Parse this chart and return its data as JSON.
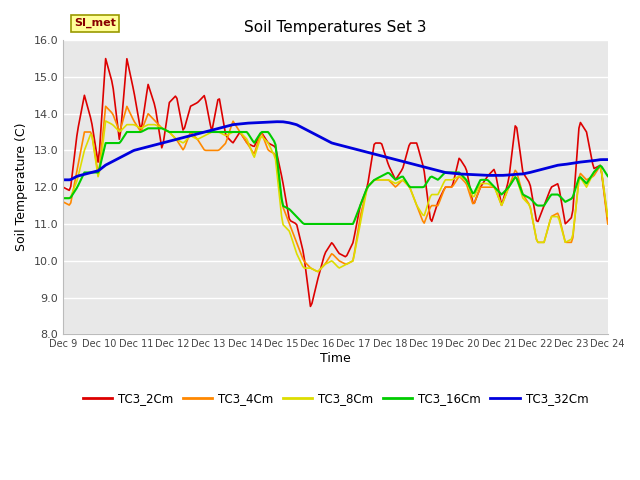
{
  "title": "Soil Temperatures Set 3",
  "xlabel": "Time",
  "ylabel": "Soil Temperature (C)",
  "ylim": [
    8.0,
    16.0
  ],
  "yticks": [
    8.0,
    9.0,
    10.0,
    11.0,
    12.0,
    13.0,
    14.0,
    15.0,
    16.0
  ],
  "xtick_labels": [
    "Dec 9",
    "Dec 10",
    "Dec 11",
    "Dec 12",
    "Dec 13",
    "Dec 14",
    "Dec 15",
    "Dec 16",
    "Dec 17",
    "Dec 18",
    "Dec 19",
    "Dec 20",
    "Dec 21",
    "Dec 22",
    "Dec 23",
    "Dec 24"
  ],
  "colors": {
    "TC3_2Cm": "#dd0000",
    "TC3_4Cm": "#ff8800",
    "TC3_8Cm": "#dddd00",
    "TC3_16Cm": "#00cc00",
    "TC3_32Cm": "#0000dd"
  },
  "bg_color": "#e8e8e8",
  "legend_label": "SI_met",
  "legend_bg": "#ffff99",
  "legend_border": "#999900",
  "figsize": [
    6.4,
    4.8
  ],
  "dpi": 100,
  "TC3_2Cm": [
    12.0,
    11.9,
    13.5,
    14.5,
    13.8,
    12.6,
    15.5,
    14.8,
    13.2,
    15.5,
    14.6,
    13.5,
    14.8,
    14.2,
    13.0,
    14.3,
    14.5,
    13.5,
    14.2,
    14.3,
    14.5,
    13.5,
    14.5,
    13.4,
    13.2,
    13.5,
    13.2,
    13.1,
    13.5,
    13.2,
    13.1,
    12.2,
    11.1,
    11.0,
    10.2,
    8.7,
    9.5,
    10.2,
    10.5,
    10.2,
    10.1,
    10.5,
    11.5,
    12.0,
    13.2,
    13.2,
    12.6,
    12.2,
    12.5,
    13.2,
    13.2,
    12.5,
    11.0,
    11.6,
    12.0,
    12.0,
    12.8,
    12.5,
    11.5,
    12.0,
    12.3,
    12.5,
    11.5,
    12.2,
    13.8,
    12.4,
    12.1,
    11.0,
    11.5,
    12.0,
    12.1,
    11.0,
    11.2,
    13.8,
    13.5,
    12.5,
    12.6,
    11.1
  ],
  "TC3_4Cm": [
    11.6,
    11.5,
    12.5,
    13.5,
    13.5,
    12.3,
    14.2,
    14.0,
    13.5,
    14.2,
    13.8,
    13.5,
    14.0,
    13.8,
    13.6,
    13.5,
    13.3,
    13.0,
    13.5,
    13.3,
    13.0,
    13.0,
    13.0,
    13.2,
    13.8,
    13.5,
    13.2,
    12.9,
    13.5,
    13.0,
    12.9,
    11.5,
    11.0,
    10.5,
    10.0,
    9.8,
    9.7,
    9.9,
    10.2,
    10.0,
    9.9,
    10.0,
    11.2,
    12.0,
    12.2,
    12.2,
    12.2,
    12.0,
    12.2,
    12.0,
    11.5,
    11.0,
    11.5,
    11.5,
    12.0,
    12.0,
    12.3,
    12.1,
    11.5,
    12.0,
    12.0,
    12.0,
    11.5,
    12.0,
    12.5,
    11.8,
    11.5,
    10.5,
    10.5,
    11.2,
    11.3,
    10.5,
    10.5,
    12.4,
    12.2,
    12.3,
    12.6,
    11.0
  ],
  "TC3_8Cm": [
    11.7,
    11.7,
    12.2,
    13.0,
    13.5,
    12.2,
    13.8,
    13.7,
    13.5,
    13.7,
    13.7,
    13.6,
    13.7,
    13.7,
    13.6,
    13.5,
    13.3,
    13.2,
    13.4,
    13.3,
    13.4,
    13.5,
    13.5,
    13.4,
    13.5,
    13.5,
    13.3,
    12.8,
    13.4,
    13.2,
    12.8,
    11.0,
    10.8,
    10.2,
    9.8,
    9.8,
    9.7,
    9.9,
    10.0,
    9.8,
    9.9,
    10.0,
    11.0,
    12.0,
    12.2,
    12.2,
    12.2,
    12.1,
    12.2,
    12.0,
    11.5,
    11.2,
    11.8,
    11.8,
    12.2,
    12.2,
    12.3,
    12.2,
    11.7,
    12.1,
    12.1,
    12.0,
    11.5,
    12.0,
    12.3,
    11.7,
    11.5,
    10.5,
    10.5,
    11.2,
    11.2,
    10.5,
    10.6,
    12.3,
    12.0,
    12.4,
    12.6,
    11.2
  ],
  "TC3_16Cm": [
    11.7,
    11.7,
    12.0,
    12.4,
    12.4,
    12.4,
    13.2,
    13.2,
    13.2,
    13.5,
    13.5,
    13.5,
    13.6,
    13.6,
    13.6,
    13.5,
    13.5,
    13.5,
    13.5,
    13.5,
    13.5,
    13.5,
    13.5,
    13.5,
    13.5,
    13.5,
    13.5,
    13.2,
    13.5,
    13.5,
    13.2,
    11.5,
    11.4,
    11.2,
    11.0,
    11.0,
    11.0,
    11.0,
    11.0,
    11.0,
    11.0,
    11.0,
    11.5,
    12.0,
    12.2,
    12.3,
    12.4,
    12.2,
    12.3,
    12.0,
    12.0,
    12.0,
    12.3,
    12.2,
    12.4,
    12.4,
    12.4,
    12.2,
    11.8,
    12.2,
    12.2,
    12.0,
    11.8,
    12.0,
    12.3,
    11.8,
    11.7,
    11.5,
    11.5,
    11.8,
    11.8,
    11.6,
    11.7,
    12.3,
    12.1,
    12.4,
    12.6,
    12.3
  ],
  "TC3_32Cm": [
    12.2,
    12.2,
    12.3,
    12.35,
    12.4,
    12.45,
    12.6,
    12.7,
    12.8,
    12.9,
    13.0,
    13.05,
    13.1,
    13.15,
    13.2,
    13.25,
    13.3,
    13.35,
    13.4,
    13.45,
    13.5,
    13.55,
    13.6,
    13.65,
    13.7,
    13.72,
    13.74,
    13.75,
    13.76,
    13.77,
    13.78,
    13.78,
    13.75,
    13.7,
    13.6,
    13.5,
    13.4,
    13.3,
    13.2,
    13.15,
    13.1,
    13.05,
    13.0,
    12.95,
    12.9,
    12.85,
    12.8,
    12.75,
    12.7,
    12.65,
    12.6,
    12.55,
    12.5,
    12.45,
    12.4,
    12.38,
    12.36,
    12.35,
    12.34,
    12.33,
    12.32,
    12.32,
    12.32,
    12.33,
    12.35,
    12.36,
    12.4,
    12.45,
    12.5,
    12.55,
    12.6,
    12.62,
    12.65,
    12.68,
    12.7,
    12.72,
    12.75,
    12.75
  ]
}
